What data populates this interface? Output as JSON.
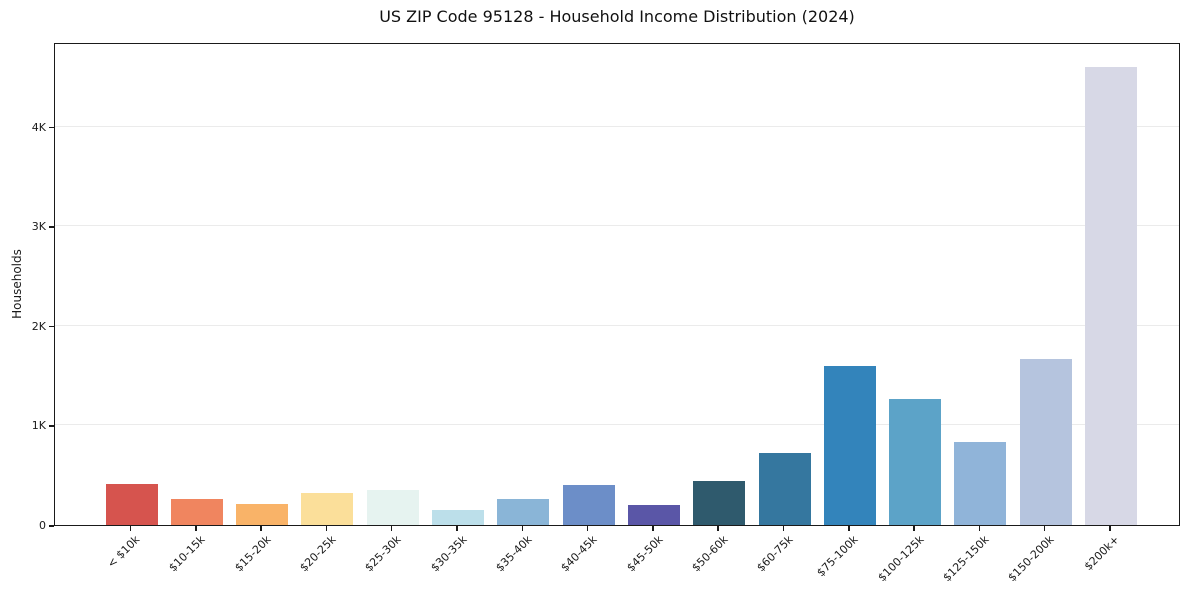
{
  "title": "US ZIP Code 95128 - Household Income Distribution (2024)",
  "chart_data": {
    "type": "bar",
    "title": "US ZIP Code 95128 - Household Income Distribution (2024)",
    "xlabel": "",
    "ylabel": "Households",
    "categories": [
      "< $10k",
      "$10-15k",
      "$15-20k",
      "$20-25k",
      "$25-30k",
      "$30-35k",
      "$35-40k",
      "$40-45k",
      "$45-50k",
      "$50-60k",
      "$60-75k",
      "$75-100k",
      "$100-125k",
      "$125-150k",
      "$150-200k",
      "$200k+"
    ],
    "values": [
      410,
      260,
      210,
      325,
      350,
      155,
      265,
      400,
      200,
      440,
      720,
      1600,
      1270,
      830,
      1670,
      4600
    ],
    "bar_colors": [
      "#d6544e",
      "#f0855f",
      "#f9b368",
      "#fbdf9a",
      "#e6f3f0",
      "#bcdfea",
      "#8ab5d7",
      "#6c8ec8",
      "#5a56a7",
      "#2f5a6d",
      "#35779f",
      "#3384bb",
      "#5ca3c8",
      "#90b4d9",
      "#b5c4de",
      "#d7d8e6"
    ],
    "ylim": [
      0,
      4850
    ],
    "yticks": [
      {
        "value": 0,
        "label": "0"
      },
      {
        "value": 1000,
        "label": "1K"
      },
      {
        "value": 2000,
        "label": "2K"
      },
      {
        "value": 3000,
        "label": "3K"
      },
      {
        "value": 4000,
        "label": "4K"
      }
    ],
    "grid": "horizontal",
    "legend": "none",
    "x_tick_rotation_deg": 45
  }
}
